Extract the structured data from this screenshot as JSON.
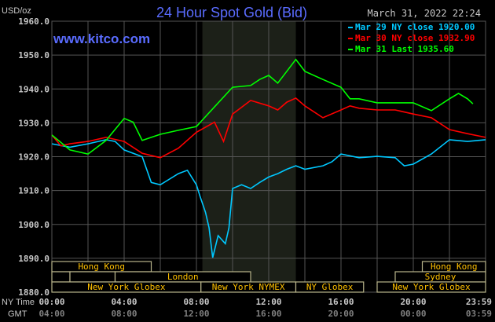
{
  "chart_data": {
    "type": "line",
    "title": "24 Hour Spot Gold (Bid)",
    "ylabel": "USD/oz",
    "watermark": "www.kitco.com",
    "timestamp": "March 31, 2022 22:24",
    "ylim": [
      1880,
      1960
    ],
    "xlim_hours": [
      0,
      24
    ],
    "grid": true,
    "legend_placement": "top-right",
    "y_ticks": [
      "1960.0",
      "1950.0",
      "1940.0",
      "1930.0",
      "1920.0",
      "1910.0",
      "1900.0",
      "1890.0",
      "1880.0"
    ],
    "x_axis_labels": {
      "ny_label": "NY Time",
      "gmt_label": "GMT",
      "ny": [
        "00:00",
        "04:00",
        "08:00",
        "12:00",
        "16:00",
        "20:00",
        "23:59"
      ],
      "gmt": [
        "04:00",
        "08:00",
        "12:00",
        "16:00",
        "20:00",
        "00:00",
        "03:59"
      ]
    },
    "highlight_hours": [
      8.33,
      13.5
    ],
    "sessions": [
      {
        "label": "Hong Kong",
        "row": 0,
        "start": 0,
        "end": 5.5
      },
      {
        "label": "Hong Kong",
        "row": 0,
        "start": 20.5,
        "end": 24
      },
      {
        "label": "",
        "row": 1,
        "start": 0,
        "end": 1
      },
      {
        "label": "",
        "row": 1,
        "start": 1,
        "end": 3.5
      },
      {
        "label": "London",
        "row": 1,
        "start": 3.5,
        "end": 11
      },
      {
        "label": "Sydney",
        "row": 1,
        "start": 19,
        "end": 24
      },
      {
        "label": "New York Globex",
        "row": 2,
        "start": 0,
        "end": 8.25
      },
      {
        "label": "New York NYMEX",
        "row": 2,
        "start": 8.25,
        "end": 13.5
      },
      {
        "label": "NY Globex",
        "row": 2,
        "start": 13.5,
        "end": 17.25
      },
      {
        "label": "New York Globex",
        "row": 2,
        "start": 18,
        "end": 24
      }
    ],
    "series": [
      {
        "name": "Mar 29 NY close 1920.00",
        "color": "#00c8ff",
        "x": [
          0,
          1,
          2,
          3,
          3.5,
          4,
          5,
          5.5,
          6,
          7,
          7.5,
          8,
          8.2,
          8.5,
          8.7,
          8.9,
          9.2,
          9.6,
          9.8,
          10,
          10.5,
          11,
          11.5,
          12,
          12.5,
          13,
          13.5,
          14,
          15,
          15.5,
          16,
          17,
          18,
          19,
          19.5,
          20,
          21,
          22,
          23,
          24
        ],
        "y": [
          1923.8,
          1922.8,
          1923.8,
          1925,
          1924.5,
          1922,
          1920,
          1912.4,
          1911.7,
          1915,
          1916,
          1911.7,
          1908.3,
          1903.6,
          1899,
          1890.2,
          1896.7,
          1894.3,
          1899,
          1910.6,
          1911.7,
          1910.6,
          1912.4,
          1914,
          1915,
          1916.3,
          1917.3,
          1916.3,
          1917.3,
          1918.5,
          1920.8,
          1919.7,
          1920.1,
          1919.7,
          1917.3,
          1917.8,
          1920.8,
          1925,
          1924.5,
          1925
        ]
      },
      {
        "name": "Mar 30 NY close 1932.90",
        "color": "#ff0000",
        "x": [
          0,
          0.5,
          1,
          2,
          3,
          4,
          5,
          6,
          7,
          8,
          9,
          9.5,
          10,
          11,
          12,
          12.5,
          13,
          13.5,
          14,
          15,
          16,
          16.5,
          17,
          18,
          19,
          20,
          21,
          22,
          23,
          24
        ],
        "y": [
          1926.4,
          1923.2,
          1923.8,
          1924.5,
          1925.7,
          1924.5,
          1921,
          1919.7,
          1922.5,
          1927.2,
          1930.2,
          1924.5,
          1932.6,
          1936.6,
          1935,
          1933.8,
          1936.1,
          1937.3,
          1935,
          1931.5,
          1933.8,
          1935,
          1934.3,
          1933.8,
          1933.8,
          1932.6,
          1931.5,
          1928,
          1926.8,
          1925.7
        ]
      },
      {
        "name": "Mar 31 Last 1935.60",
        "color": "#00ff00",
        "x": [
          0,
          1,
          2,
          3,
          4,
          4.5,
          5,
          6,
          7,
          8,
          9,
          10,
          11,
          11.5,
          12,
          12.5,
          13,
          13.5,
          14,
          15,
          16,
          16.5,
          17,
          18,
          19,
          20,
          21,
          22,
          22.5,
          23,
          23.3
        ],
        "y": [
          1926.4,
          1922,
          1920.8,
          1924.8,
          1931.3,
          1930.2,
          1924.8,
          1926.6,
          1927.8,
          1928.9,
          1934.7,
          1940.5,
          1941,
          1942.8,
          1944,
          1941.7,
          1945.2,
          1948.7,
          1945.2,
          1942.8,
          1940.5,
          1937.1,
          1937.1,
          1935.9,
          1935.9,
          1935.9,
          1933.6,
          1937.1,
          1938.7,
          1937.1,
          1935.6
        ]
      }
    ]
  },
  "colors": {
    "title": "#5a6cff",
    "grid": "#555555",
    "session_border": "#b8b48a",
    "session_text": "#ffc000",
    "axis_text": "#c8c8c8",
    "gmt_text": "#808080",
    "highlight": "#1c2018"
  }
}
